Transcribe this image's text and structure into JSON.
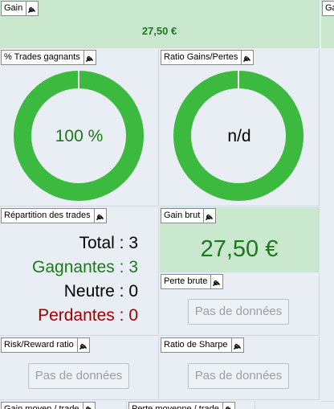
{
  "widgets": {
    "gain": {
      "title": "Gain",
      "value": "27,50 €"
    },
    "gain_right_stub": {
      "title": "Gai"
    },
    "win_rate": {
      "title": "% Trades gagnants",
      "value_text": "100 %",
      "fill_fraction": 1.0
    },
    "gain_loss_ratio": {
      "title": "Ratio Gains/Pertes",
      "value_text": "n/d",
      "fill_fraction": 1.0
    },
    "trade_split": {
      "title": "Répartition des trades",
      "total_label": "Total",
      "total_value": "3",
      "winners_label": "Gagnantes",
      "winners_value": "3",
      "neutral_label": "Neutre",
      "neutral_value": "0",
      "losers_label": "Perdantes",
      "losers_value": "0",
      "separator": " : "
    },
    "gross_gain": {
      "title": "Gain brut",
      "value": "27,50 €"
    },
    "gross_loss": {
      "title": "Perte brute",
      "empty_label": "Pas de données"
    },
    "risk_reward": {
      "title": "Risk/Reward ratio",
      "empty_label": "Pas de données"
    },
    "sharpe": {
      "title": "Ratio de Sharpe",
      "empty_label": "Pas de données"
    },
    "bottom_left": {
      "title": "Gain moyen / trade"
    },
    "bottom_right": {
      "title": "Perte moyenne / trade"
    }
  },
  "icons": {
    "config": "wrench-icon"
  },
  "colors": {
    "donut_fill": "#3cb93f",
    "positive_text": "#1a7a1a",
    "negative_text": "#a00000",
    "green_panel": "#c9e8cd"
  }
}
